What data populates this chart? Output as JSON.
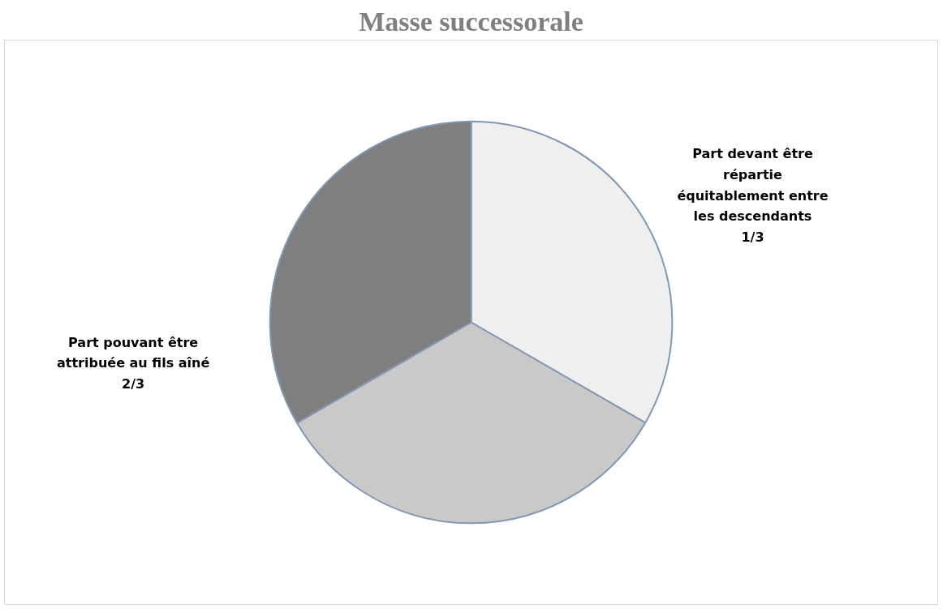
{
  "chart_data": {
    "type": "pie",
    "title": "Masse successorale",
    "categories": [
      null,
      null,
      null
    ],
    "values": [
      33.33,
      33.33,
      33.34
    ],
    "colors": [
      "#efefef",
      "#c9c9c9",
      "#7f7f7f"
    ],
    "annotations": [
      "Part devant être répartie équitablement entre les descendants\n1/3",
      "Part pouvant être attribuée au fils aîné\n2/3"
    ]
  }
}
